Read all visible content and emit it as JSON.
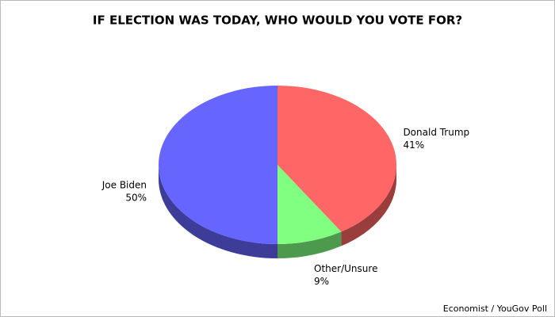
{
  "chart_data": {
    "type": "pie",
    "title": "IF ELECTION WAS TODAY, WHO WOULD YOU VOTE FOR?",
    "source": "Economist / YouGov Poll",
    "categories": [
      "Donald Trump",
      "Other/Unsure",
      "Joe Biden"
    ],
    "values": [
      41,
      9,
      50
    ],
    "value_labels": [
      "41%",
      "9%",
      "50%"
    ],
    "colors": [
      "#ff6666",
      "#80ff80",
      "#6666ff"
    ]
  }
}
